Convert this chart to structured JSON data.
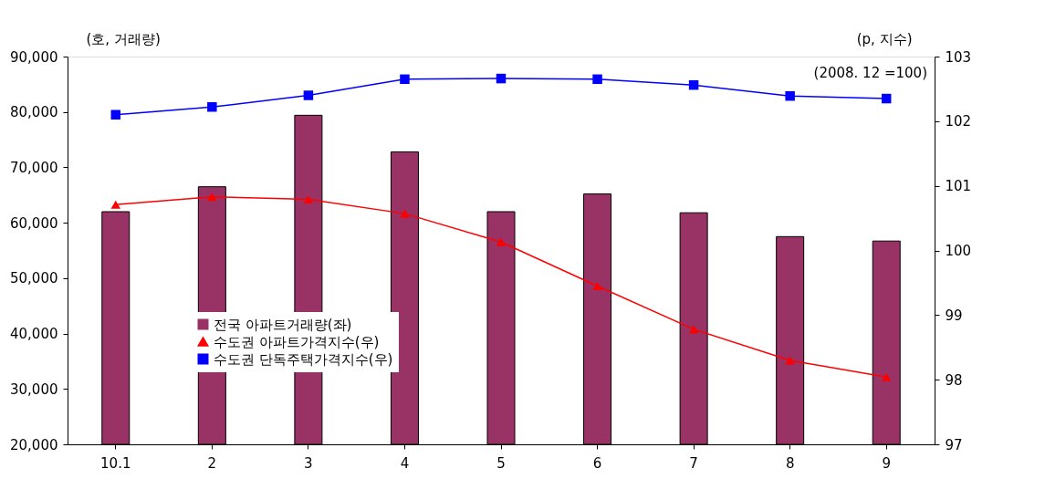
{
  "chart_data": {
    "type": "bar",
    "categories": [
      "10.1",
      "2",
      "3",
      "4",
      "5",
      "6",
      "7",
      "8",
      "9"
    ],
    "ylabel": "(호, 거래량)",
    "y2label": "(p, 지수)",
    "annotations": [
      "(2008. 12 =100)"
    ],
    "ylim": [
      20000,
      90000
    ],
    "yticks": [
      {
        "value": 20000,
        "label": "20,000"
      },
      {
        "value": 30000,
        "label": "30,000"
      },
      {
        "value": 40000,
        "label": "40,000"
      },
      {
        "value": 50000,
        "label": "50,000"
      },
      {
        "value": 60000,
        "label": "60,000"
      },
      {
        "value": 70000,
        "label": "70,000"
      },
      {
        "value": 80000,
        "label": "80,000"
      },
      {
        "value": 90000,
        "label": "90,000"
      }
    ],
    "y2lim": [
      97,
      103
    ],
    "y2ticks": [
      97,
      98,
      99,
      100,
      101,
      102,
      103
    ],
    "grid": false,
    "legend": "left",
    "series": [
      {
        "name": "전국 아파트거래량(좌)",
        "color": "#993366",
        "values": [
          62000,
          66500,
          79400,
          72800,
          62000,
          65200,
          61800,
          57500,
          56700
        ]
      },
      {
        "name": "수도권 아파트가격지수(우)",
        "type": "line",
        "axis": "y2",
        "color": "#ff0000",
        "marker": "triangle",
        "values": [
          100.71,
          100.83,
          100.79,
          100.57,
          100.13,
          99.45,
          98.78,
          98.3,
          98.04
        ]
      },
      {
        "name": "수도권 단독주택가격지수(우)",
        "type": "line",
        "axis": "y2",
        "color": "#0000ff",
        "marker": "square",
        "values": [
          102.1,
          102.22,
          102.4,
          102.65,
          102.66,
          102.65,
          102.56,
          102.39,
          102.35
        ]
      }
    ]
  }
}
